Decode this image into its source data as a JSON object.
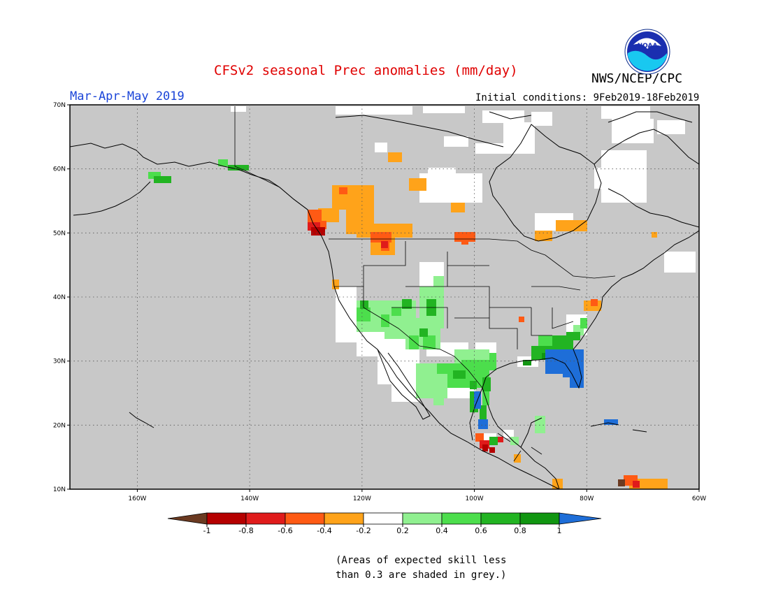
{
  "header": {
    "title": "CFSv2 seasonal Prec anomalies (mm/day)",
    "agency": "NWS/NCEP/CPC",
    "season": "Mar-Apr-May 2019",
    "initial_conditions": "Initial conditions: 9Feb2019-18Feb2019",
    "logo_text": "NOAA"
  },
  "map": {
    "region": "North America",
    "projection": "lat-lon",
    "lon_range": [
      -172,
      -60
    ],
    "lat_range": [
      10,
      70
    ],
    "lat_ticks": [
      {
        "v": 70,
        "label": "70N"
      },
      {
        "v": 60,
        "label": "60N"
      },
      {
        "v": 50,
        "label": "50N"
      },
      {
        "v": 40,
        "label": "40N"
      },
      {
        "v": 30,
        "label": "30N"
      },
      {
        "v": 20,
        "label": "20N"
      },
      {
        "v": 10,
        "label": "10N"
      }
    ],
    "lon_ticks": [
      {
        "v": -160,
        "label": "160W"
      },
      {
        "v": -140,
        "label": "140W"
      },
      {
        "v": -120,
        "label": "120W"
      },
      {
        "v": -100,
        "label": "100W"
      },
      {
        "v": -80,
        "label": "80W"
      },
      {
        "v": -60,
        "label": "60W"
      }
    ],
    "grey_color": "#c8c8c8",
    "gridline_style": "dotted"
  },
  "colorbar": {
    "labels": [
      "-1",
      "-0.8",
      "-0.6",
      "-0.4",
      "-0.2",
      "0.2",
      "0.4",
      "0.6",
      "0.8",
      "1"
    ],
    "colors": [
      "#6b3a21",
      "#b50000",
      "#e01b1b",
      "#ff5a14",
      "#ffa31a",
      "#ffffff",
      "#90f090",
      "#4cde4c",
      "#22b422",
      "#119611",
      "#1e6ed8"
    ]
  },
  "footnote": {
    "line1": "(Areas of expected skill less",
    "line2": "than 0.3 are shaded in grey.)"
  }
}
